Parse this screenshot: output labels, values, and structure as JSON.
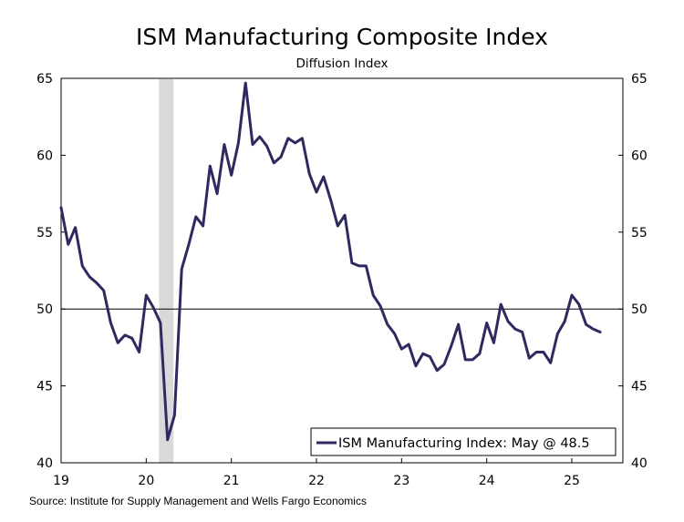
{
  "chart_data": {
    "type": "line",
    "title": "ISM Manufacturing Composite Index",
    "subtitle": "Diffusion Index",
    "source": "Source: Institute for Supply Management and Wells Fargo Economics",
    "ylim": [
      40,
      65
    ],
    "yticks": [
      "40",
      "45",
      "50",
      "55",
      "60",
      "65"
    ],
    "xlim": [
      2019.0,
      2025.6
    ],
    "xticks": [
      {
        "label": "19",
        "value": 2019
      },
      {
        "label": "20",
        "value": 2020
      },
      {
        "label": "21",
        "value": 2021
      },
      {
        "label": "22",
        "value": 2022
      },
      {
        "label": "23",
        "value": 2023
      },
      {
        "label": "24",
        "value": 2024
      },
      {
        "label": "25",
        "value": 2025
      }
    ],
    "reference_line": 50,
    "recession": {
      "start": 2020.15,
      "end": 2020.32
    },
    "series": [
      {
        "name": "ISM Manufacturing Index: May @ 48.5",
        "color": "#2e2a5f",
        "start_year": 2019,
        "start_month": 1,
        "values": [
          56.6,
          54.2,
          55.3,
          52.8,
          52.1,
          51.7,
          51.2,
          49.1,
          47.8,
          48.3,
          48.1,
          47.2,
          50.9,
          50.1,
          49.1,
          41.5,
          43.1,
          52.6,
          54.2,
          56.0,
          55.4,
          59.3,
          57.5,
          60.7,
          58.7,
          60.8,
          64.7,
          60.7,
          61.2,
          60.6,
          59.5,
          59.9,
          61.1,
          60.8,
          61.1,
          58.8,
          57.6,
          58.6,
          57.1,
          55.4,
          56.1,
          53.0,
          52.8,
          52.8,
          50.9,
          50.2,
          49.0,
          48.4,
          47.4,
          47.7,
          46.3,
          47.1,
          46.9,
          46.0,
          46.4,
          47.6,
          49.0,
          46.7,
          46.7,
          47.1,
          49.1,
          47.8,
          50.3,
          49.2,
          48.7,
          48.5,
          46.8,
          47.2,
          47.2,
          46.5,
          48.4,
          49.2,
          50.9,
          50.3,
          49.0,
          48.7,
          48.5
        ]
      }
    ],
    "legend": {
      "label": "ISM Manufacturing Index: May @ 48.5",
      "position": "bottom-right"
    }
  }
}
